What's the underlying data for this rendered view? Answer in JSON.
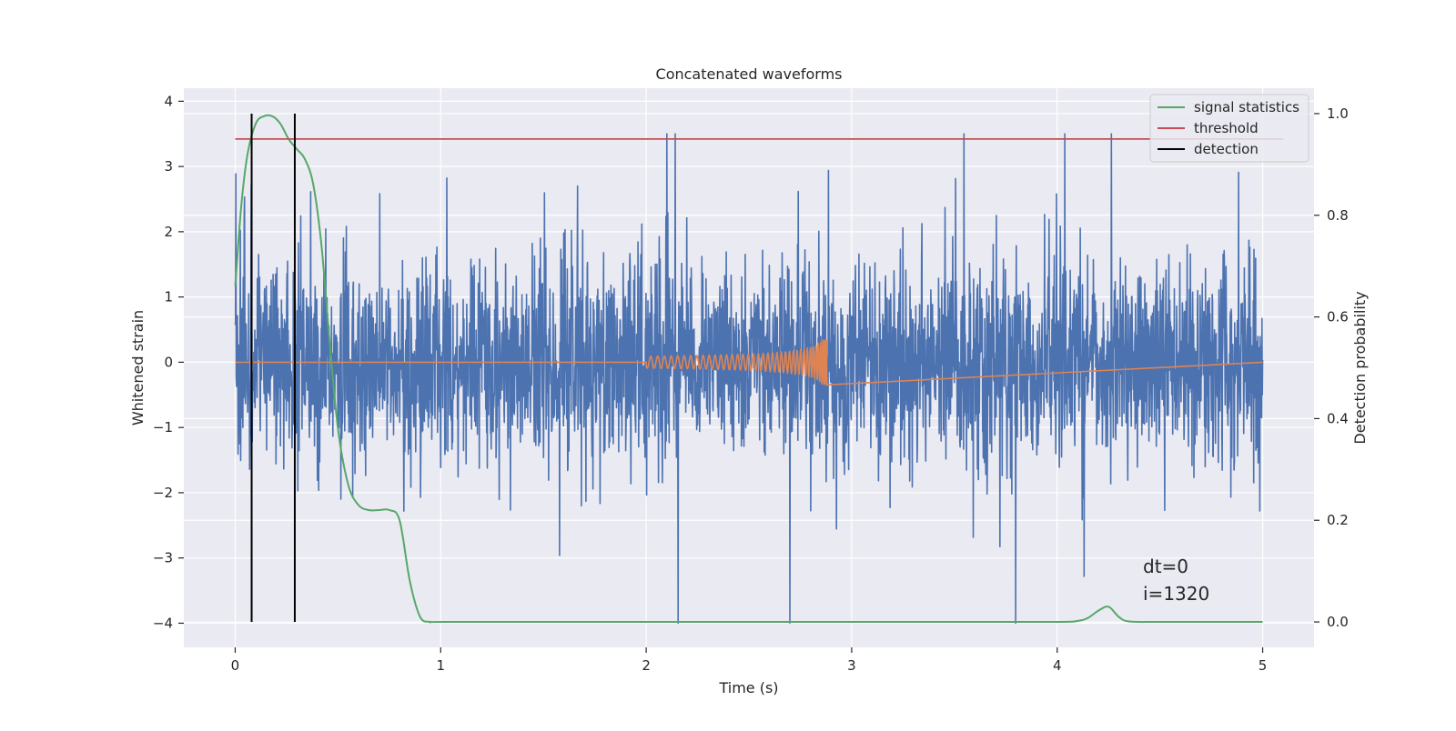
{
  "chart_data": {
    "type": "line",
    "title": "Concatenated waveforms",
    "xlabel": "Time (s)",
    "ylabel_left": "Whitened strain",
    "ylabel_right": "Detection probability",
    "xlim": [
      -0.25,
      5.25
    ],
    "ylim_left": [
      -4.37,
      4.2
    ],
    "ylim_right": [
      -0.05,
      1.05
    ],
    "x_ticks": [
      0,
      1,
      2,
      3,
      4,
      5
    ],
    "x_tick_labels": [
      "0",
      "1",
      "2",
      "3",
      "4",
      "5"
    ],
    "y_left_ticks": [
      -4,
      -3,
      -2,
      -1,
      0,
      1,
      2,
      3,
      4
    ],
    "y_left_tick_labels": [
      "−4",
      "−3",
      "−2",
      "−1",
      "0",
      "1",
      "2",
      "3",
      "4"
    ],
    "y_right_ticks": [
      0.0,
      0.2,
      0.4,
      0.6,
      0.8,
      1.0
    ],
    "y_right_tick_labels": [
      "0.0",
      "0.2",
      "0.4",
      "0.6",
      "0.8",
      "1.0"
    ],
    "grid": true,
    "legend_position": "top-right",
    "series": [
      {
        "name": "",
        "axis": "left",
        "color": "#4c72b0",
        "kind": "noise",
        "x_range": [
          0,
          5
        ],
        "amplitude_std": 0.75,
        "y_min": -4.0,
        "y_max": 3.5
      },
      {
        "name": "",
        "axis": "left",
        "color": "#dd8452",
        "kind": "chirp",
        "x_range": [
          2.0,
          2.88
        ],
        "peak_amplitude": 0.35
      },
      {
        "name": "signal statistics",
        "axis": "right",
        "color": "#55a868",
        "x": [
          0.0,
          0.03,
          0.06,
          0.1,
          0.14,
          0.18,
          0.22,
          0.26,
          0.3,
          0.34,
          0.38,
          0.42,
          0.46,
          0.5,
          0.55,
          0.6,
          0.65,
          0.7,
          0.75,
          0.8,
          0.85,
          0.9,
          0.95,
          1.0,
          1.5,
          2.0,
          2.5,
          3.0,
          3.5,
          4.0,
          4.1,
          4.15,
          4.2,
          4.25,
          4.3,
          4.35,
          4.5,
          5.0
        ],
        "y": [
          0.66,
          0.82,
          0.92,
          0.98,
          0.995,
          0.995,
          0.98,
          0.95,
          0.93,
          0.91,
          0.86,
          0.74,
          0.55,
          0.38,
          0.27,
          0.23,
          0.22,
          0.22,
          0.22,
          0.2,
          0.08,
          0.01,
          0.0,
          0.0,
          0.0,
          0.0,
          0.0,
          0.0,
          0.0,
          0.0,
          0.002,
          0.008,
          0.022,
          0.03,
          0.01,
          0.001,
          0.0,
          0.0
        ]
      },
      {
        "name": "threshold",
        "axis": "right",
        "color": "#c44e52",
        "x": [
          0,
          5.1
        ],
        "y": [
          0.95,
          0.95
        ]
      },
      {
        "name": "detection",
        "axis": "right",
        "color": "#000000",
        "kind": "vlines",
        "x": [
          0.08,
          0.29
        ],
        "ymin": 0.0,
        "ymax": 1.0
      }
    ],
    "annotations": [
      "dt=0",
      "i=1320"
    ],
    "colors": {
      "axes_background": "#eaeaf2",
      "grid": "#ffffff",
      "text": "#262626"
    }
  }
}
